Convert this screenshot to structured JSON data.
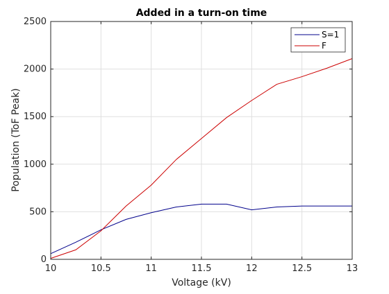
{
  "chart_data": {
    "type": "line",
    "title": "Added in a turn-on time",
    "xlabel": "Voltage (kV)",
    "ylabel": "Population (ToF Peak)",
    "xlim": [
      10,
      13
    ],
    "ylim": [
      0,
      2500
    ],
    "xticks": [
      10,
      10.5,
      11,
      11.5,
      12,
      12.5,
      13
    ],
    "xtick_labels": [
      "10",
      "10.5",
      "11",
      "11.5",
      "12",
      "12.5",
      "13"
    ],
    "yticks": [
      0,
      500,
      1000,
      1500,
      2000,
      2500
    ],
    "ytick_labels": [
      "0",
      "500",
      "1000",
      "1500",
      "2000",
      "2500"
    ],
    "grid": true,
    "legend_position": "top-right",
    "series": [
      {
        "name": "S=1",
        "color": "#00008b",
        "x": [
          10,
          10.25,
          10.5,
          10.75,
          11,
          11.25,
          11.5,
          11.75,
          12,
          12.25,
          12.5,
          12.75,
          13
        ],
        "y": [
          60,
          180,
          310,
          420,
          490,
          550,
          580,
          580,
          520,
          550,
          560,
          560,
          560
        ]
      },
      {
        "name": "F",
        "color": "#cc0000",
        "x": [
          10,
          10.25,
          10.5,
          10.75,
          11,
          11.25,
          11.5,
          11.75,
          12,
          12.25,
          12.5,
          12.75,
          13
        ],
        "y": [
          10,
          100,
          300,
          560,
          780,
          1050,
          1270,
          1490,
          1670,
          1840,
          1920,
          2010,
          2110
        ]
      }
    ]
  }
}
